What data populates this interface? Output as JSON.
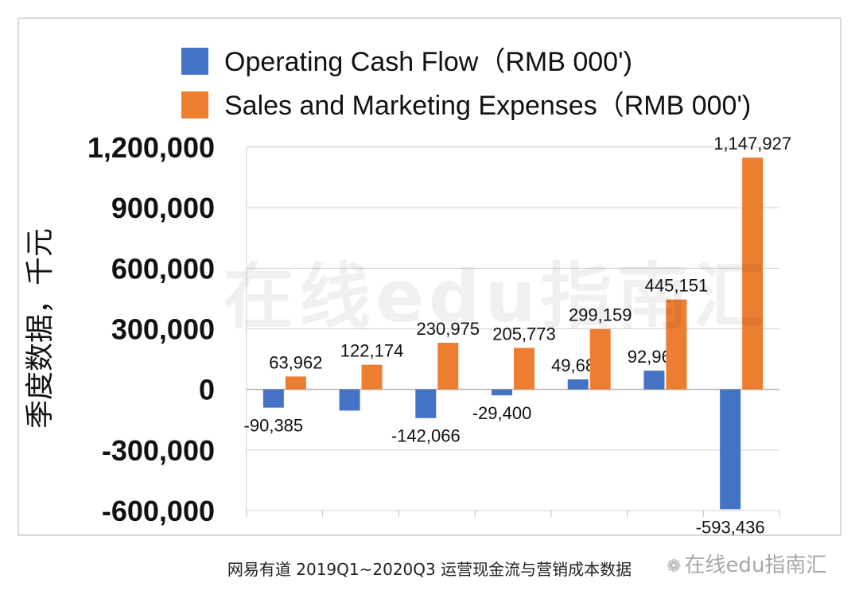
{
  "chart_data": {
    "type": "bar",
    "categories": [
      "",
      "",
      "",
      "",
      "",
      "",
      ""
    ],
    "series": [
      {
        "name": "Operating Cash Flow（RMB 000')",
        "color": "#4472c4",
        "values": [
          -90385,
          -105000,
          -142066,
          -29400,
          49687,
          92962,
          -593436
        ],
        "labels": [
          "-90,385",
          "",
          "-142,066",
          "-29,400",
          "49,687",
          "92,962",
          "-593,436"
        ]
      },
      {
        "name": "Sales and Marketing Expenses（RMB 000')",
        "color": "#ed7d31",
        "values": [
          63962,
          122174,
          230975,
          205773,
          299159,
          445151,
          1147927
        ],
        "labels": [
          "63,962",
          "122,174",
          "230,975",
          "205,773",
          "299,159",
          "445,151",
          "1,147,927"
        ]
      }
    ],
    "ylim": [
      -600000,
      1200000
    ],
    "yticks": [
      -600000,
      -300000,
      0,
      300000,
      600000,
      900000,
      1200000
    ],
    "ytick_labels": [
      "-600,000",
      "-300,000",
      "0",
      "300,000",
      "600,000",
      "900,000",
      "1,200,000"
    ],
    "ylabel": "季度数据，千元",
    "xlabel": "",
    "grid": true,
    "legend_position": "top"
  },
  "caption": "网易有道 2019Q1~2020Q3 运营现金流与营销成本数据",
  "watermark": {
    "big": "在线edu指南汇",
    "small": "在线edu指南汇",
    "icon": "wechat-icon"
  }
}
